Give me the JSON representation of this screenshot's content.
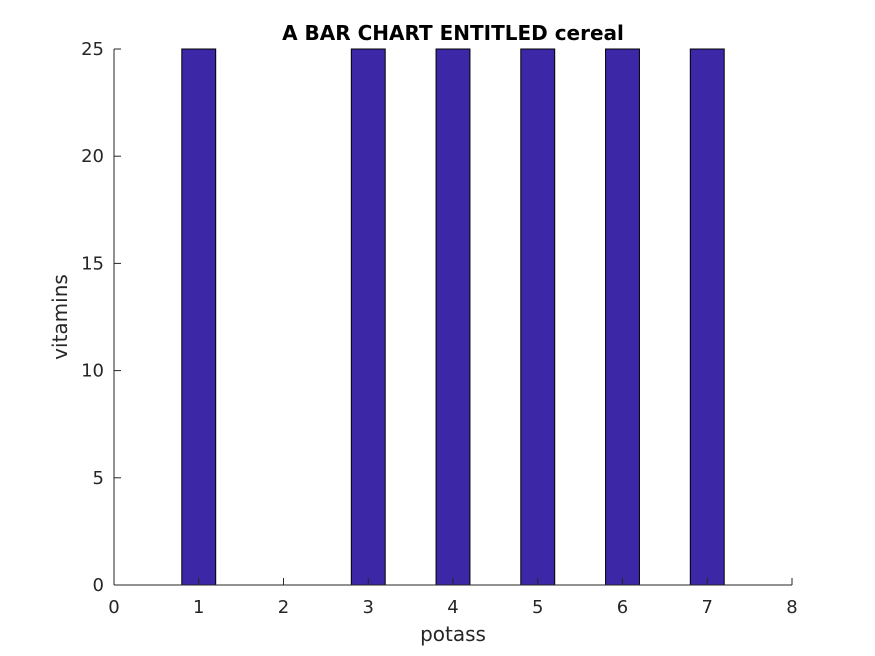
{
  "chart_data": {
    "type": "bar",
    "title": "A BAR CHART ENTITLED cereal",
    "xlabel": "potass",
    "ylabel": "vitamins",
    "x": [
      1,
      2,
      3,
      4,
      5,
      6,
      7
    ],
    "values": [
      25,
      0,
      25,
      25,
      25,
      25,
      25
    ],
    "xlim": [
      0,
      8
    ],
    "ylim": [
      0,
      25
    ],
    "xticks": [
      "0",
      "1",
      "2",
      "3",
      "4",
      "5",
      "6",
      "7",
      "8"
    ],
    "yticks": [
      "0",
      "5",
      "10",
      "15",
      "20",
      "25"
    ],
    "bar_color": "#3c27a6",
    "grid": false
  }
}
